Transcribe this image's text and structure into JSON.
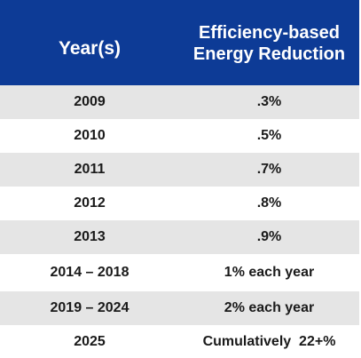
{
  "header": {
    "year_label": "Year(s)",
    "reduction_line1": "Efficiency-based",
    "reduction_line2": "Energy Reduction"
  },
  "rows": [
    {
      "year": "2009",
      "reduction": ".3%"
    },
    {
      "year": "2010",
      "reduction": ".5%"
    },
    {
      "year": "2011",
      "reduction": ".7%"
    },
    {
      "year": "2012",
      "reduction": ".8%"
    },
    {
      "year": "2013",
      "reduction": ".9%"
    },
    {
      "year": "2014 – 2018",
      "reduction": "1% each year"
    },
    {
      "year": "2019 – 2024",
      "reduction": "2% each year"
    },
    {
      "year": "2025",
      "reduction": "Cumulatively  22+%"
    }
  ],
  "colors": {
    "header_bg": "#0d3b96",
    "header_text": "#ffffff",
    "row_shade": "#e5e5e5",
    "row_plain": "#ffffff"
  }
}
